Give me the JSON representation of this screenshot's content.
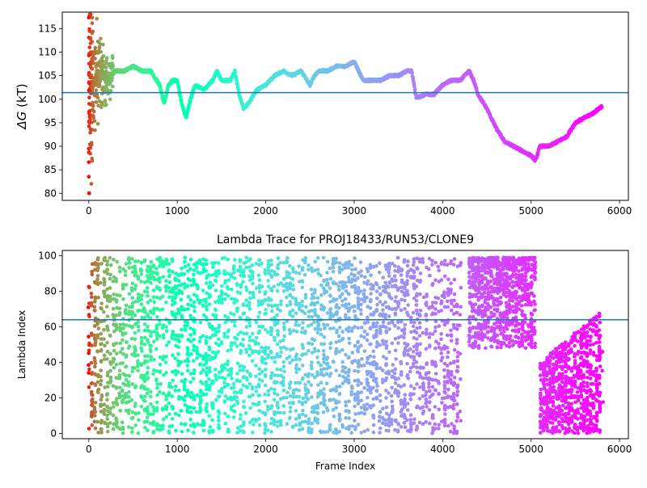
{
  "chart_data": [
    {
      "type": "scatter",
      "title": "",
      "xlabel": "",
      "ylabel": "ΔG (kT)",
      "ylabel_parts": {
        "symbol": "ΔG",
        "unit": " (kT)"
      },
      "xlim": [
        -300,
        6100
      ],
      "ylim": [
        78.5,
        118.5
      ],
      "xticks": [
        0,
        1000,
        2000,
        3000,
        4000,
        5000,
        6000
      ],
      "yticks": [
        80,
        85,
        90,
        95,
        100,
        105,
        110,
        115
      ],
      "hline": 101.4,
      "hline_color": "#1f77b4",
      "colormap": "rainbow (red at start, violet at end)",
      "n_frames": 5800,
      "series_x": [
        0,
        100,
        200,
        300,
        400,
        500,
        600,
        700,
        800,
        850,
        900,
        950,
        1000,
        1050,
        1100,
        1150,
        1200,
        1300,
        1400,
        1450,
        1500,
        1600,
        1650,
        1700,
        1750,
        1800,
        1900,
        2000,
        2100,
        2200,
        2300,
        2400,
        2500,
        2550,
        2600,
        2700,
        2800,
        2900,
        3000,
        3050,
        3100,
        3200,
        3300,
        3400,
        3500,
        3600,
        3650,
        3700,
        3750,
        3800,
        3900,
        4000,
        4100,
        4200,
        4300,
        4350,
        4400,
        4500,
        4600,
        4700,
        4800,
        4900,
        5000,
        5050,
        5100,
        5200,
        5300,
        5400,
        5500,
        5600,
        5700,
        5800
      ],
      "series_y": [
        100,
        106,
        104,
        106,
        106,
        107,
        106,
        106,
        103,
        99,
        103,
        104,
        104,
        99,
        96,
        100,
        103,
        102,
        104,
        106,
        104,
        104,
        106,
        101,
        98,
        99,
        102,
        103,
        105,
        106,
        105,
        106,
        103,
        105,
        106,
        106,
        107,
        107,
        108,
        106,
        104,
        104,
        104,
        105,
        105,
        106,
        106,
        100.5,
        100.5,
        101,
        101,
        103,
        104,
        104,
        106,
        104,
        101,
        98,
        94,
        91,
        90,
        89,
        88,
        87,
        90,
        90,
        91,
        92,
        95,
        96,
        97,
        98.5
      ]
    },
    {
      "type": "scatter",
      "title": "Lambda Trace for PROJ18433/RUN53/CLONE9",
      "xlabel": "Frame Index",
      "ylabel": "Lambda Index",
      "xlim": [
        -300,
        6100
      ],
      "ylim": [
        -3,
        103
      ],
      "xticks": [
        0,
        1000,
        2000,
        3000,
        4000,
        5000,
        6000
      ],
      "yticks": [
        0,
        20,
        40,
        60,
        80,
        100
      ],
      "hline": 64,
      "hline_color": "#1f77b4",
      "colormap": "rainbow (red at start, violet at end)",
      "n_frames": 5800,
      "bands": [
        {
          "x": [
            0,
            3000
          ],
          "y": [
            0,
            99
          ]
        },
        {
          "x": [
            3000,
            4200
          ],
          "y": [
            0,
            99
          ]
        },
        {
          "x": [
            4300,
            5050
          ],
          "y": [
            48,
            99
          ]
        },
        {
          "x": [
            5100,
            5800
          ],
          "y": [
            0,
            70
          ]
        }
      ]
    }
  ]
}
